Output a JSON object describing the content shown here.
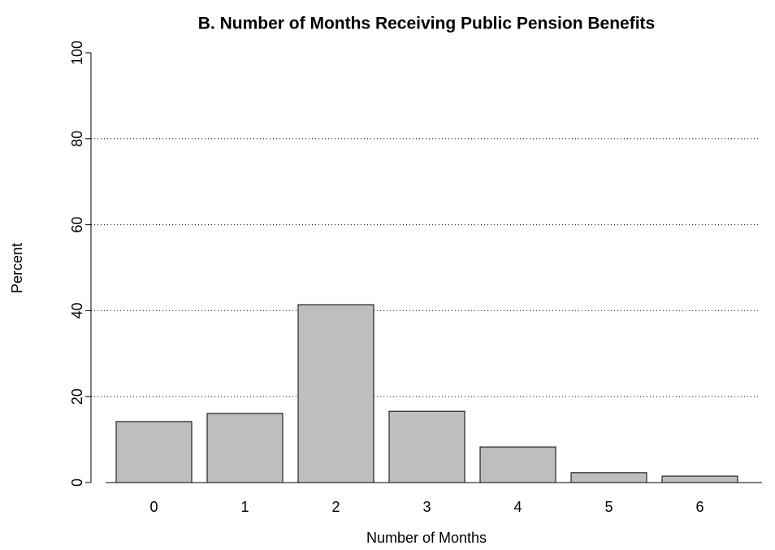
{
  "chart_data": {
    "type": "bar",
    "title": "B. Number of Months Receiving Public Pension Benefits",
    "x_label": "Number of Months",
    "y_label": "Percent",
    "categories": [
      "0",
      "1",
      "2",
      "3",
      "4",
      "5",
      "6"
    ],
    "values": [
      14.2,
      16.1,
      41.4,
      16.6,
      8.3,
      2.3,
      1.5
    ],
    "color": "#bebebe",
    "ylim": [
      0,
      100
    ],
    "yticks": [
      0,
      20,
      40,
      60,
      80,
      100
    ],
    "grid": true
  }
}
